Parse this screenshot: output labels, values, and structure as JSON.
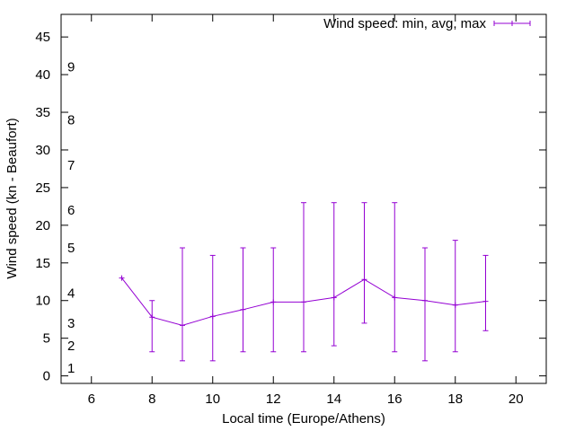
{
  "chart_data": {
    "type": "line",
    "title": "",
    "xlabel": "Local time (Europe/Athens)",
    "ylabel": "Wind speed (kn - Beaufort)",
    "xlim": [
      5,
      21
    ],
    "ylim": [
      -1,
      48
    ],
    "xticks": [
      6,
      8,
      10,
      12,
      14,
      16,
      18,
      20
    ],
    "yticks": [
      0,
      5,
      10,
      15,
      20,
      25,
      30,
      35,
      40,
      45
    ],
    "grid": false,
    "legend_position": "top-right",
    "series": [
      {
        "name": "Wind speed: min, avg, max",
        "color": "#9400d3",
        "x": [
          7,
          8,
          9,
          10,
          11,
          12,
          13,
          14,
          15,
          16,
          17,
          18,
          19
        ],
        "avg": [
          13,
          7.8,
          6.7,
          7.9,
          8.8,
          9.8,
          9.8,
          10.4,
          12.8,
          10.4,
          10.0,
          9.4,
          9.9
        ],
        "min": [
          13,
          3.2,
          2.0,
          2.0,
          3.2,
          3.2,
          3.2,
          4.0,
          7.0,
          3.2,
          2.0,
          3.2,
          6.0
        ],
        "max": [
          13,
          10.0,
          17.0,
          16.0,
          17.0,
          17.0,
          23.0,
          23.0,
          23.0,
          23.0,
          17.0,
          18.0,
          16.0
        ]
      }
    ],
    "beaufort_labels": [
      {
        "label": "1",
        "value": 1
      },
      {
        "label": "2",
        "value": 4
      },
      {
        "label": "3",
        "value": 7
      },
      {
        "label": "4",
        "value": 11
      },
      {
        "label": "5",
        "value": 17
      },
      {
        "label": "6",
        "value": 22
      },
      {
        "label": "7",
        "value": 28
      },
      {
        "label": "8",
        "value": 34
      },
      {
        "label": "9",
        "value": 41
      }
    ]
  }
}
